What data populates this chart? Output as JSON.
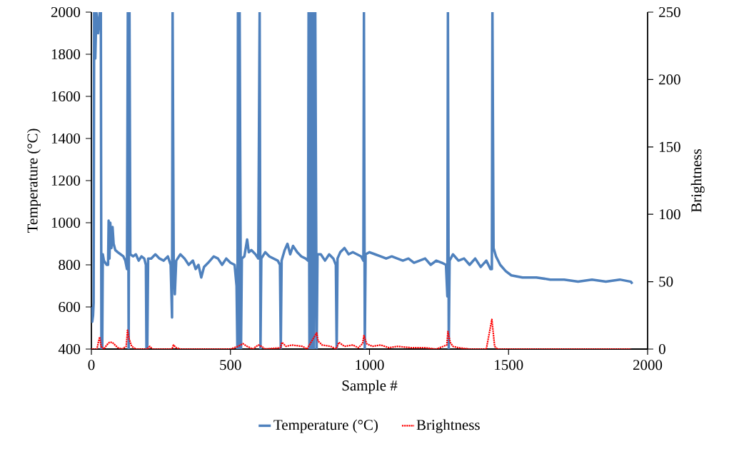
{
  "chart_data": {
    "type": "line",
    "xlabel": "Sample #",
    "ylabel": "Temperature (°C)",
    "y2label": "Brightness",
    "xlim": [
      0,
      2000
    ],
    "xticks": [
      0,
      500,
      1000,
      1500,
      2000
    ],
    "ylim": [
      400,
      2000
    ],
    "yticks": [
      400,
      600,
      800,
      1000,
      1200,
      1400,
      1600,
      1800,
      2000
    ],
    "y2lim": [
      0,
      250
    ],
    "y2ticks": [
      0,
      50,
      100,
      150,
      200,
      250
    ],
    "legend": "bottom",
    "series": [
      {
        "name": "Temperature (°C)",
        "color": "#4f81bd",
        "line_style": "solid",
        "x": [
          0,
          3,
          6,
          8,
          10,
          14,
          18,
          24,
          30,
          34,
          36,
          39,
          41,
          45,
          50,
          55,
          60,
          62,
          65,
          68,
          72,
          76,
          80,
          86,
          95,
          105,
          115,
          122,
          128,
          131,
          134,
          137,
          140,
          150,
          160,
          170,
          180,
          190,
          196,
          198,
          201,
          204,
          215,
          230,
          245,
          260,
          275,
          285,
          290,
          292,
          296,
          300,
          305,
          320,
          335,
          350,
          365,
          375,
          385,
          395,
          405,
          420,
          440,
          455,
          470,
          485,
          500,
          515,
          522,
          525,
          527,
          530,
          533,
          538,
          541,
          550,
          560,
          566,
          575,
          590,
          600,
          605,
          608,
          611,
          625,
          640,
          655,
          670,
          678,
          681,
          684,
          695,
          705,
          715,
          725,
          740,
          755,
          770,
          779,
          781,
          784,
          788,
          792,
          796,
          800,
          805,
          810,
          813,
          825,
          840,
          855,
          870,
          879,
          882,
          885,
          895,
          910,
          925,
          940,
          955,
          970,
          978,
          980,
          983,
          986,
          1000,
          1020,
          1040,
          1060,
          1080,
          1100,
          1120,
          1140,
          1160,
          1180,
          1200,
          1220,
          1240,
          1260,
          1275,
          1280,
          1282,
          1285,
          1288,
          1300,
          1320,
          1340,
          1360,
          1380,
          1400,
          1420,
          1435,
          1440,
          1442,
          1446,
          1455,
          1470,
          1490,
          1510,
          1550,
          1600,
          1650,
          1700,
          1750,
          1800,
          1850,
          1900,
          1940,
          1945
        ],
        "values": [
          600,
          530,
          560,
          620,
          2000,
          1780,
          2000,
          1900,
          2000,
          2000,
          400,
          400,
          850,
          820,
          810,
          800,
          800,
          1010,
          830,
          1000,
          880,
          980,
          900,
          870,
          860,
          850,
          840,
          820,
          780,
          2000,
          400,
          2000,
          850,
          840,
          850,
          820,
          840,
          830,
          800,
          400,
          400,
          830,
          830,
          850,
          830,
          820,
          840,
          800,
          550,
          2000,
          800,
          660,
          820,
          850,
          830,
          800,
          820,
          780,
          800,
          740,
          790,
          810,
          840,
          830,
          800,
          830,
          810,
          800,
          700,
          400,
          2000,
          400,
          2000,
          400,
          830,
          840,
          920,
          860,
          870,
          850,
          830,
          2000,
          400,
          830,
          860,
          840,
          830,
          820,
          800,
          400,
          820,
          870,
          900,
          850,
          890,
          860,
          840,
          830,
          820,
          2000,
          400,
          2000,
          400,
          2000,
          400,
          2000,
          400,
          850,
          850,
          820,
          850,
          830,
          800,
          400,
          830,
          860,
          880,
          850,
          860,
          850,
          840,
          820,
          2000,
          400,
          850,
          860,
          850,
          840,
          830,
          840,
          830,
          820,
          830,
          810,
          820,
          830,
          800,
          820,
          810,
          800,
          650,
          2000,
          400,
          820,
          850,
          820,
          830,
          800,
          830,
          790,
          820,
          780,
          780,
          2000,
          880,
          840,
          800,
          770,
          750,
          740,
          740,
          730,
          730,
          720,
          730,
          720,
          730,
          720,
          710
        ]
      },
      {
        "name": "Brightness",
        "color": "#ff0000",
        "line_style": "dotted",
        "axis": "y2",
        "x": [
          0,
          20,
          25,
          30,
          35,
          45,
          55,
          65,
          75,
          85,
          95,
          110,
          125,
          130,
          135,
          145,
          160,
          200,
          210,
          220,
          290,
          295,
          305,
          320,
          500,
          528,
          545,
          560,
          580,
          600,
          612,
          625,
          680,
          685,
          700,
          720,
          760,
          775,
          810,
          815,
          830,
          860,
          880,
          890,
          910,
          940,
          960,
          975,
          980,
          990,
          1010,
          1040,
          1070,
          1100,
          1150,
          1200,
          1240,
          1278,
          1282,
          1290,
          1300,
          1320,
          1360,
          1420,
          1440,
          1445,
          1450,
          1460,
          1600,
          1800,
          1940
        ],
        "values": [
          0,
          0,
          5,
          9,
          2,
          0,
          3,
          5,
          5,
          3,
          1,
          0,
          2,
          14,
          8,
          2,
          0,
          0,
          2,
          0,
          0,
          3,
          1,
          0,
          0,
          2,
          4,
          2,
          0,
          3,
          2,
          0,
          1,
          5,
          2,
          3,
          2,
          0,
          12,
          6,
          3,
          2,
          0,
          5,
          2,
          3,
          1,
          4,
          10,
          4,
          2,
          3,
          1,
          2,
          1,
          1,
          0,
          3,
          13,
          5,
          2,
          1,
          0,
          0,
          22,
          12,
          2,
          0,
          0,
          0,
          0
        ]
      }
    ]
  }
}
